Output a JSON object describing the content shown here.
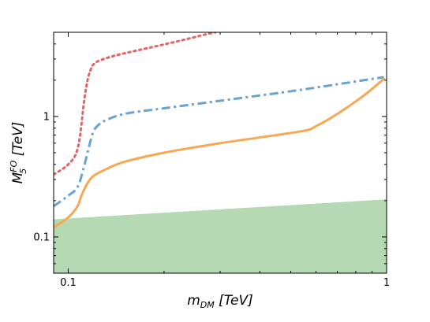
{
  "chart_data": {
    "type": "line",
    "x_scale": "log",
    "y_scale": "log",
    "xlim": [
      0.09,
      1.0
    ],
    "ylim": [
      0.05,
      5.0
    ],
    "xlabel": {
      "main": "m",
      "sub": "DM",
      "unit": " [TeV]"
    },
    "ylabel": {
      "main": "M",
      "sub": "5",
      "sup": "FO",
      "unit": " [TeV]"
    },
    "x_ticks": [
      {
        "value": 0.1,
        "label": "0.1"
      },
      {
        "value": 1,
        "label": "1"
      }
    ],
    "y_ticks": [
      {
        "value": 0.1,
        "label": "0.1"
      },
      {
        "value": 1,
        "label": "1"
      }
    ],
    "grid": false,
    "series": [
      {
        "style": "dotted",
        "color": "#e06666",
        "points": [
          [
            0.09,
            0.33
          ],
          [
            0.095,
            0.36
          ],
          [
            0.1,
            0.4
          ],
          [
            0.105,
            0.47
          ],
          [
            0.108,
            0.6
          ],
          [
            0.11,
            0.85
          ],
          [
            0.112,
            1.3
          ],
          [
            0.115,
            2.0
          ],
          [
            0.118,
            2.5
          ],
          [
            0.12,
            2.7
          ],
          [
            0.125,
            2.9
          ],
          [
            0.14,
            3.2
          ],
          [
            0.17,
            3.6
          ],
          [
            0.22,
            4.2
          ],
          [
            0.27,
            4.8
          ],
          [
            0.29,
            5.0
          ]
        ]
      },
      {
        "style": "dashdot",
        "color": "#69a3cf",
        "points": [
          [
            0.09,
            0.18
          ],
          [
            0.1,
            0.22
          ],
          [
            0.107,
            0.26
          ],
          [
            0.112,
            0.38
          ],
          [
            0.116,
            0.55
          ],
          [
            0.12,
            0.75
          ],
          [
            0.125,
            0.86
          ],
          [
            0.13,
            0.92
          ],
          [
            0.15,
            1.05
          ],
          [
            0.2,
            1.17
          ],
          [
            0.3,
            1.35
          ],
          [
            0.5,
            1.62
          ],
          [
            0.7,
            1.85
          ],
          [
            0.9,
            2.05
          ],
          [
            0.98,
            2.12
          ]
        ]
      },
      {
        "style": "solid",
        "color": "#f7a854",
        "points": [
          [
            0.09,
            0.12
          ],
          [
            0.1,
            0.145
          ],
          [
            0.107,
            0.18
          ],
          [
            0.11,
            0.22
          ],
          [
            0.115,
            0.28
          ],
          [
            0.12,
            0.32
          ],
          [
            0.13,
            0.36
          ],
          [
            0.15,
            0.42
          ],
          [
            0.2,
            0.5
          ],
          [
            0.3,
            0.6
          ],
          [
            0.4,
            0.67
          ],
          [
            0.55,
            0.76
          ],
          [
            0.6,
            0.83
          ],
          [
            0.7,
            1.05
          ],
          [
            0.85,
            1.5
          ],
          [
            0.98,
            2.05
          ]
        ]
      }
    ],
    "shaded_region": {
      "color": "#b5d9b2",
      "upper_boundary": [
        [
          0.09,
          0.14
        ],
        [
          1.0,
          0.205
        ]
      ]
    }
  }
}
